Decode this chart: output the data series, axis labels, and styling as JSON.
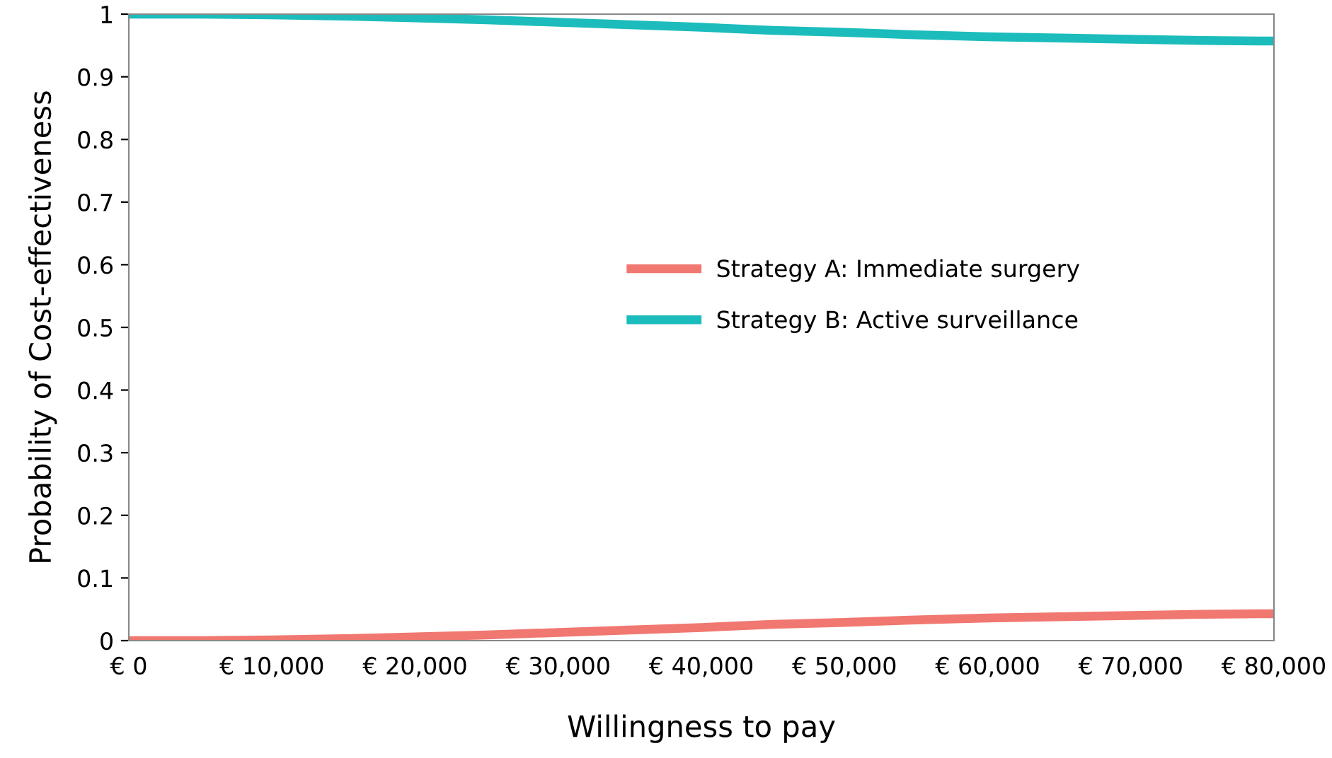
{
  "chart_data": {
    "type": "line",
    "xlabel": "Willingness to pay",
    "ylabel": "Probability of Cost-effectiveness",
    "x": [
      0,
      5000,
      10000,
      15000,
      20000,
      25000,
      30000,
      35000,
      40000,
      45000,
      50000,
      55000,
      60000,
      65000,
      70000,
      75000,
      80000
    ],
    "series": [
      {
        "name": "Strategy A: Immediate surgery",
        "color": "#f07870",
        "values": [
          0,
          0,
          0.001,
          0.003,
          0.006,
          0.009,
          0.013,
          0.017,
          0.021,
          0.026,
          0.029,
          0.033,
          0.036,
          0.038,
          0.04,
          0.042,
          0.043
        ]
      },
      {
        "name": "Strategy B: Active surveillance",
        "color": "#1cbcbc",
        "values": [
          1,
          1,
          0.999,
          0.997,
          0.994,
          0.991,
          0.987,
          0.983,
          0.979,
          0.974,
          0.971,
          0.967,
          0.964,
          0.962,
          0.96,
          0.958,
          0.957
        ]
      }
    ],
    "xlim": [
      0,
      80000
    ],
    "xticks": [
      {
        "value": 0,
        "label": "€ 0"
      },
      {
        "value": 10000,
        "label": "€ 10,000"
      },
      {
        "value": 20000,
        "label": "€ 20,000"
      },
      {
        "value": 30000,
        "label": "€ 30,000"
      },
      {
        "value": 40000,
        "label": "€ 40,000"
      },
      {
        "value": 50000,
        "label": "€ 50,000"
      },
      {
        "value": 60000,
        "label": "€ 60,000"
      },
      {
        "value": 70000,
        "label": "€ 70,000"
      },
      {
        "value": 80000,
        "label": "€ 80,000"
      }
    ],
    "ylim": [
      0,
      1
    ],
    "yticks": [
      0,
      0.1,
      0.2,
      0.3,
      0.4,
      0.5,
      0.6,
      0.7,
      0.8,
      0.9,
      1
    ],
    "grid": false,
    "legend": "center",
    "marker": "none",
    "line_style": "solid"
  }
}
